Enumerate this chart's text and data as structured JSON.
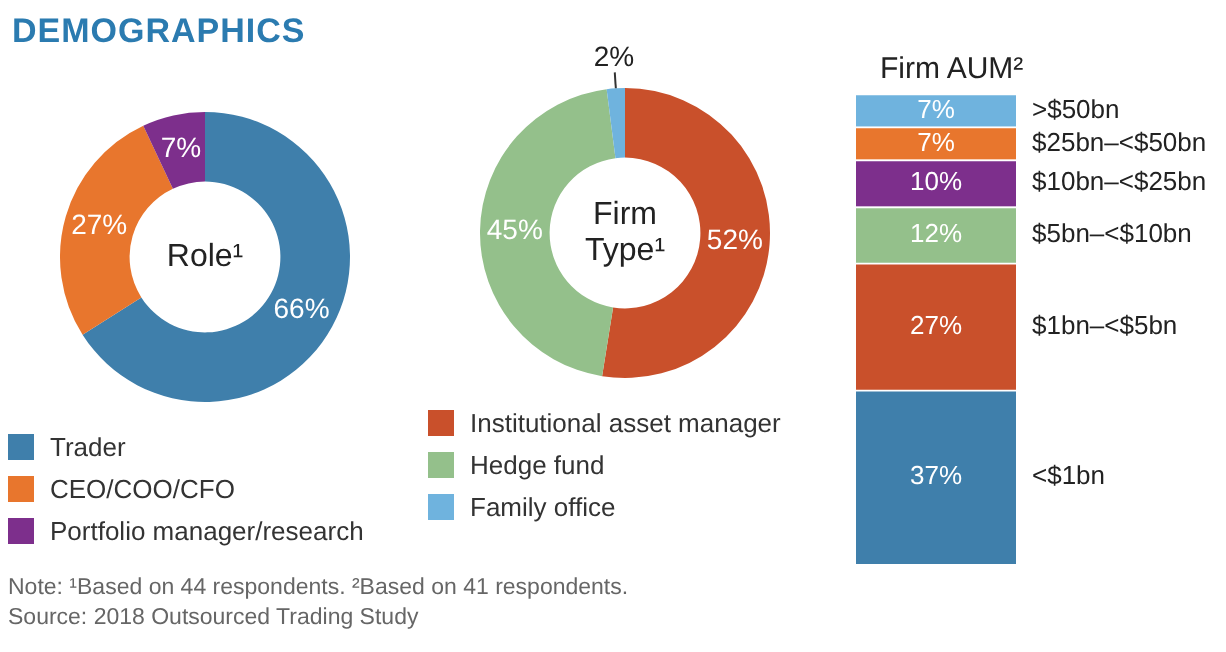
{
  "chart_data": [
    {
      "type": "donut",
      "title": "DEMOGRAPHICS",
      "categories": [
        "Trader",
        "CEO/COO/CFO",
        "Portfolio manager/research"
      ],
      "values": [
        66,
        27,
        7
      ],
      "value_labels": [
        "66%",
        "27%",
        "7%"
      ],
      "colors": [
        "#3f7fab",
        "#e8762d",
        "#7d2f8c"
      ],
      "legend": "bottom",
      "annotations": [
        "Role¹",
        "Note: ¹Based on 44 respondents. ²Based on 41 respondents.",
        "Source: 2018 Outsourced Trading Study"
      ]
    },
    {
      "type": "donut",
      "categories": [
        "Institutional asset manager",
        "Hedge fund",
        "Family office"
      ],
      "values": [
        52,
        45,
        2
      ],
      "value_labels": [
        "52%",
        "45%",
        "2%"
      ],
      "colors": [
        "#c9502b",
        "#94c08b",
        "#6fb3de"
      ],
      "legend": "bottom",
      "annotations": [
        "Firm Type¹"
      ]
    },
    {
      "type": "bar",
      "title": "Firm AUM²",
      "stacked": true,
      "categories": [
        null
      ],
      "ylim": [
        0,
        100
      ],
      "tick_labels": false,
      "legend": false,
      "series": [
        {
          "name": "<$1bn",
          "color": "#3f7fab",
          "values": [
            37
          ],
          "value_labels": [
            "37%"
          ]
        },
        {
          "name": "$1bn–<$5bn",
          "color": "#c9502b",
          "values": [
            27
          ],
          "value_labels": [
            "27%"
          ]
        },
        {
          "name": "$5bn–<$10bn",
          "color": "#94c08b",
          "values": [
            12
          ],
          "value_labels": [
            "12%"
          ]
        },
        {
          "name": "$10bn–<$25bn",
          "color": "#7d2f8c",
          "values": [
            10
          ],
          "value_labels": [
            "10%"
          ]
        },
        {
          "name": "$25bn–<$50bn",
          "color": "#e8762d",
          "values": [
            7
          ],
          "value_labels": [
            "7%"
          ]
        },
        {
          "name": ">$50bn",
          "color": "#6fb3de",
          "values": [
            7
          ],
          "value_labels": [
            "7%"
          ]
        }
      ]
    }
  ]
}
